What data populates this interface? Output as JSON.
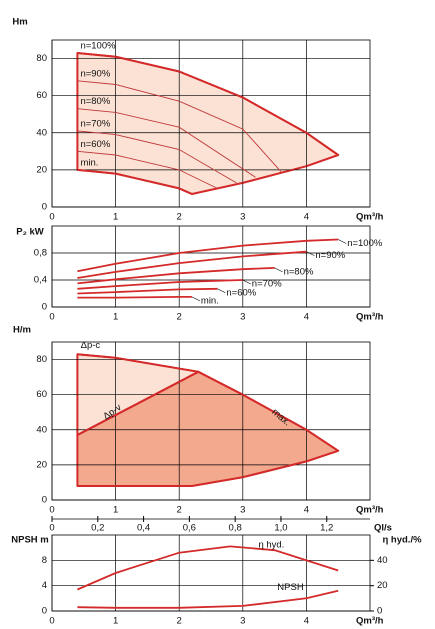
{
  "chart_data": [
    {
      "type": "line",
      "y_label": "Hm",
      "x_label": "Qm³/h",
      "xlim": [
        0,
        5
      ],
      "xticks": [
        0,
        1,
        2,
        3,
        4
      ],
      "ylim": [
        0,
        90
      ],
      "yticks": [
        0,
        20,
        40,
        60,
        80
      ],
      "area_colors": [
        "#fbe2d5"
      ],
      "series": [
        {
          "name": "n=100%",
          "color": "#d42a2a",
          "x": [
            0.4,
            1,
            2,
            3,
            4,
            4.5
          ],
          "values": [
            83,
            81,
            73,
            59,
            40,
            28
          ]
        },
        {
          "name": "n=90%",
          "color": "#c0393a",
          "x": [
            0.4,
            1,
            2,
            3,
            3.6
          ],
          "values": [
            68,
            66,
            57,
            42,
            19
          ]
        },
        {
          "name": "n=80%",
          "color": "#c0393a",
          "x": [
            0.4,
            1,
            2,
            3.2
          ],
          "values": [
            53,
            51,
            43,
            16
          ]
        },
        {
          "name": "n=70%",
          "color": "#c0393a",
          "x": [
            0.4,
            1,
            2,
            2.9
          ],
          "values": [
            41,
            39,
            31,
            13
          ]
        },
        {
          "name": "n=60%",
          "color": "#c0393a",
          "x": [
            0.4,
            1,
            2,
            2.6
          ],
          "values": [
            30,
            28,
            20,
            10
          ]
        },
        {
          "name": "min.",
          "color": "#d42a2a",
          "x": [
            0.4,
            1,
            2,
            2.2
          ],
          "values": [
            20,
            18,
            10,
            7
          ]
        }
      ],
      "limit": {
        "color": "#d42a2a",
        "x": [
          2.2,
          3,
          4,
          4.5
        ],
        "values": [
          7,
          13,
          22,
          28
        ]
      }
    },
    {
      "type": "line",
      "y_label": "P₂ kW",
      "x_label": "Qm³/h",
      "xlim": [
        0,
        5
      ],
      "xticks": [
        0,
        1,
        2,
        3,
        4
      ],
      "ylim": [
        0,
        1.2
      ],
      "yticks": [
        0,
        {
          "value": 0.4,
          "label": "0,4"
        },
        {
          "value": 0.8,
          "label": "0,8"
        }
      ],
      "series": [
        {
          "name": "n=100%",
          "color": "#d42a2a",
          "x": [
            0.4,
            1,
            2,
            3,
            4,
            4.5
          ],
          "values": [
            0.53,
            0.64,
            0.8,
            0.91,
            0.98,
            1.0
          ]
        },
        {
          "name": "n=90%",
          "color": "#d42a2a",
          "x": [
            0.4,
            1,
            2,
            3,
            4
          ],
          "values": [
            0.43,
            0.52,
            0.65,
            0.75,
            0.82
          ]
        },
        {
          "name": "n=80%",
          "color": "#d42a2a",
          "x": [
            0.4,
            1,
            2,
            3,
            3.5
          ],
          "values": [
            0.35,
            0.41,
            0.5,
            0.56,
            0.58
          ]
        },
        {
          "name": "n=70%",
          "color": "#d42a2a",
          "x": [
            0.4,
            1,
            2,
            3
          ],
          "values": [
            0.27,
            0.31,
            0.37,
            0.4
          ]
        },
        {
          "name": "n=60%",
          "color": "#d42a2a",
          "x": [
            0.4,
            1,
            2,
            2.6
          ],
          "values": [
            0.2,
            0.22,
            0.26,
            0.27
          ]
        },
        {
          "name": "min.",
          "color": "#d42a2a",
          "x": [
            0.4,
            1,
            2,
            2.2
          ],
          "values": [
            0.14,
            0.14,
            0.15,
            0.15
          ]
        }
      ]
    },
    {
      "type": "line",
      "y_label": "H/m",
      "x_label": "Qm³/h",
      "x2_label": "Ql/s",
      "xlim": [
        0,
        5
      ],
      "xticks": [
        0,
        1,
        2,
        3,
        4
      ],
      "ylim": [
        0,
        90
      ],
      "yticks": [
        0,
        20,
        40,
        60,
        80
      ],
      "x2lim": [
        0,
        1.3889
      ],
      "x2ticks": [
        0,
        {
          "value": 0.2,
          "label": "0,2"
        },
        {
          "value": 0.4,
          "label": "0,4"
        },
        {
          "value": 0.6,
          "label": "0,6"
        },
        {
          "value": 0.8,
          "label": "0,8"
        },
        {
          "value": 1.0,
          "label": "1,0"
        },
        {
          "value": 1.2,
          "label": "1,2"
        }
      ],
      "area_colors": [
        "#fbe2d5",
        "#f3a98e"
      ],
      "annotations": [
        "Δp-c"
      ],
      "series": [
        {
          "name": "max.",
          "color": "#d42a2a",
          "x": [
            0.4,
            1,
            2.3,
            3,
            4,
            4.5
          ],
          "values": [
            83,
            81,
            73,
            60,
            40,
            28
          ]
        },
        {
          "name": "Δp-v",
          "color": "#d42a2a",
          "x": [
            0.4,
            2.3
          ],
          "values": [
            37,
            73
          ]
        }
      ],
      "limit": {
        "color": "#d42a2a",
        "x": [
          0.4,
          2.2,
          3,
          4,
          4.5
        ],
        "values": [
          8,
          8,
          13,
          22,
          28
        ]
      }
    },
    {
      "type": "line",
      "y_label": "NPSH m",
      "y2_label": "η hyd./%",
      "x_label": "Qm³/h",
      "xlim": [
        0,
        5
      ],
      "xticks": [
        0,
        1,
        2,
        3,
        4
      ],
      "ylim": [
        0,
        12
      ],
      "yticks": [
        0,
        4,
        8
      ],
      "y2lim": [
        0,
        60
      ],
      "y2ticks": [
        0,
        20,
        40
      ],
      "series": [
        {
          "name": "η hyd.",
          "color": "#d42a2a",
          "axis": "y2",
          "x": [
            0.4,
            1,
            2,
            2.8,
            3.5,
            4.5
          ],
          "values": [
            17,
            30,
            46,
            51,
            48,
            32
          ]
        },
        {
          "name": "NPSH",
          "color": "#d42a2a",
          "x": [
            0.4,
            1,
            2,
            3,
            4,
            4.5
          ],
          "values": [
            0.6,
            0.5,
            0.5,
            0.8,
            2.0,
            3.2
          ]
        }
      ]
    }
  ]
}
